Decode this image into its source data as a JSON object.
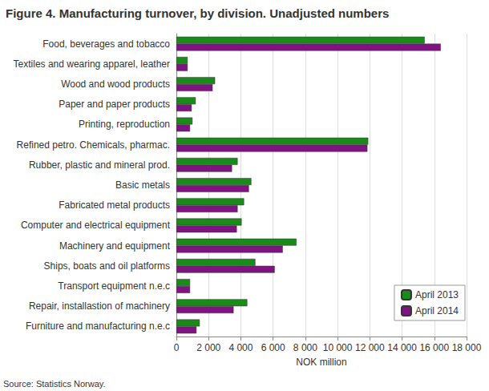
{
  "chart_data": {
    "type": "bar",
    "orientation": "horizontal",
    "title": "Figure 4. Manufacturing turnover, by division. Unadjusted numbers",
    "x_label": "NOK million",
    "annotations": [
      "Source: Statistics Norway."
    ],
    "categories": [
      "Food, beverages and tobacco",
      "Textiles and wearing apparel, leather",
      "Wood and wood products",
      "Paper and paper products",
      "Printing, reproduction",
      "Refined petro. Chemicals, pharmac.",
      "Rubber, plastic and mineral prod.",
      "Basic metals",
      "Fabricated metal products",
      "Computer and electrical equipment",
      "Machinery and equipment",
      "Ships, boats and oil platforms",
      "Transport equipment n.e.c",
      "Repair, installastion of machinery",
      "Furniture and manufacturing n.e.c"
    ],
    "series": [
      {
        "name": "April 2013",
        "color": "#1a8a1a",
        "values": [
          15400,
          700,
          2400,
          1200,
          1000,
          11900,
          3800,
          4650,
          4200,
          4050,
          7450,
          4900,
          850,
          4400,
          1450
        ]
      },
      {
        "name": "April 2014",
        "color": "#7e1480",
        "values": [
          16400,
          700,
          2250,
          950,
          850,
          11850,
          3450,
          4500,
          3800,
          3750,
          6600,
          6100,
          850,
          3550,
          1250
        ]
      }
    ],
    "xlim": [
      0,
      18000
    ],
    "xticks": [
      0,
      {
        "value": 2000,
        "label": "2 000"
      },
      {
        "value": 4000,
        "label": "4 000"
      },
      {
        "value": 6000,
        "label": "6 000"
      },
      {
        "value": 8000,
        "label": "8 000"
      },
      {
        "value": 10000,
        "label": "10 000"
      },
      {
        "value": 12000,
        "label": "12 000"
      },
      {
        "value": 14000,
        "label": "14 000"
      },
      {
        "value": 16000,
        "label": "16 000"
      },
      {
        "value": 18000,
        "label": "18 000"
      }
    ],
    "grid": true,
    "legend": "bottom-right"
  }
}
